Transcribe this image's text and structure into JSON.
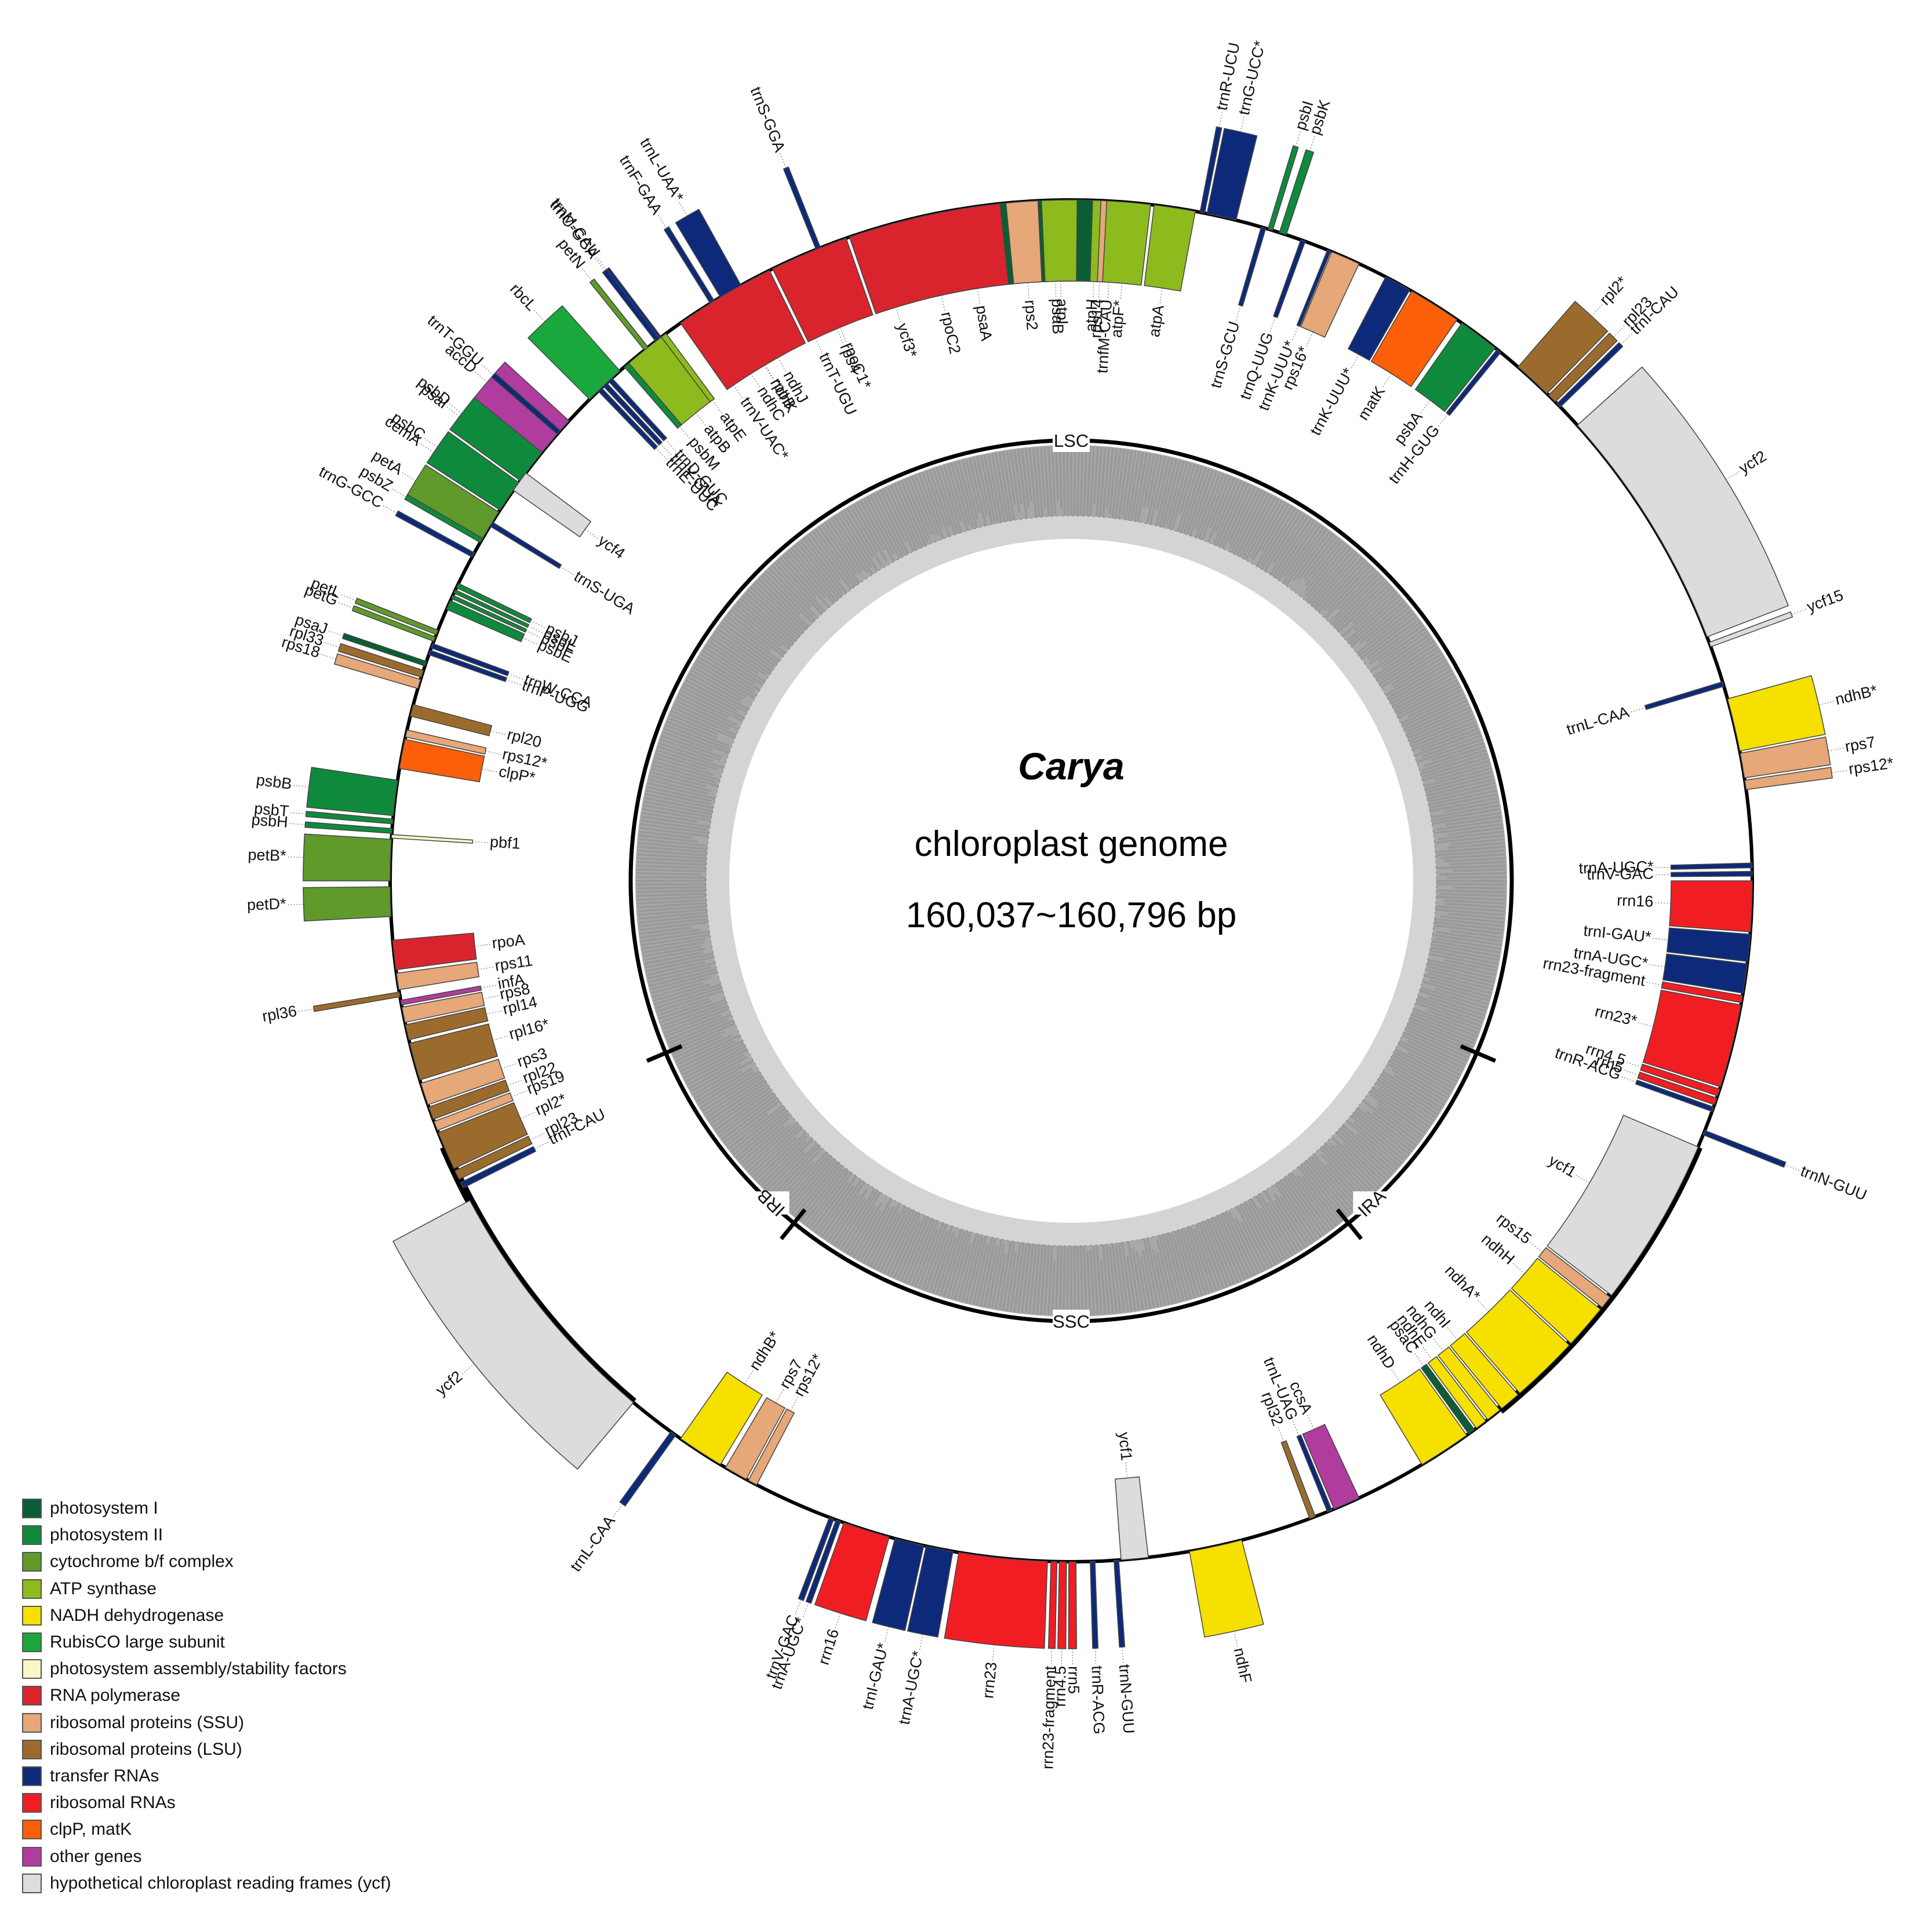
{
  "title": "Carya",
  "subtitle_line1": "chloroplast genome",
  "subtitle_line2": "160,037~160,796 bp",
  "regions": {
    "lsc": "LSC",
    "ssc": "SSC",
    "ira": "IRA",
    "irb": "IRB"
  },
  "colors": {
    "photosystem_i": "#0b5e34",
    "photosystem_ii": "#0f8a3c",
    "cytochrome": "#5f9a2a",
    "atp": "#8dbb1e",
    "ndh": "#f5e000",
    "rubisco": "#1aa83c",
    "assembly": "#fbf6c8",
    "rna_pol": "#d9242e",
    "ssu": "#e6a779",
    "lsu": "#9b6b2e",
    "trna": "#0d2a7a",
    "rrna": "#f01e23",
    "clpp_matk": "#fb5f0a",
    "other": "#b03c9e",
    "ycf": "#dcdcdc"
  },
  "legend": [
    {
      "label": "photosystem I",
      "color": "#0b5e34"
    },
    {
      "label": "photosystem II",
      "color": "#0f8a3c"
    },
    {
      "label": "cytochrome b/f complex",
      "color": "#5f9a2a"
    },
    {
      "label": "ATP synthase",
      "color": "#8dbb1e"
    },
    {
      "label": "NADH dehydrogenase",
      "color": "#f5e000"
    },
    {
      "label": "RubisCO large subunit",
      "color": "#1aa83c"
    },
    {
      "label": "photosystem assembly/stability factors",
      "color": "#fbf6c8"
    },
    {
      "label": "RNA polymerase",
      "color": "#d9242e"
    },
    {
      "label": "ribosomal proteins (SSU)",
      "color": "#e6a779"
    },
    {
      "label": "ribosomal proteins (LSU)",
      "color": "#9b6b2e"
    },
    {
      "label": "transfer RNAs",
      "color": "#0d2a7a"
    },
    {
      "label": "ribosomal RNAs",
      "color": "#f01e23"
    },
    {
      "label": "clpP, matK",
      "color": "#fb5f0a"
    },
    {
      "label": "other genes",
      "color": "#b03c9e"
    },
    {
      "label": "hypothetical chloroplast reading frames (ycf)",
      "color": "#dcdcdc"
    }
  ],
  "genes": [
    {
      "name": "psaA",
      "cat": "photosystem_i",
      "a1": -13,
      "a2": -5,
      "side": "in"
    },
    {
      "name": "psaB",
      "cat": "photosystem_i",
      "a1": -5,
      "a2": 2,
      "side": "in"
    },
    {
      "name": "rps14",
      "cat": "ssu",
      "a1": 2.2,
      "a2": 3.2,
      "side": "in"
    },
    {
      "name": "trnfM-CAU",
      "cat": "trna",
      "a1": 3.4,
      "a2": 3.8,
      "side": "in"
    },
    {
      "name": "ycf3*",
      "cat": "ycf",
      "a1": -19,
      "a2": -15,
      "side": "in"
    },
    {
      "name": "rps4",
      "cat": "ssu",
      "a1": -24,
      "a2": -22,
      "side": "in"
    },
    {
      "name": "trnT-UGU",
      "cat": "trna",
      "a1": -25.5,
      "a2": -25,
      "side": "in"
    },
    {
      "name": "trnS-GGA",
      "cat": "trna",
      "a1": -22,
      "a2": -21.6,
      "side": "out"
    },
    {
      "name": "trnL-UAA*",
      "cat": "trna",
      "a1": -31,
      "a2": -29,
      "side": "out"
    },
    {
      "name": "trnF-GAA",
      "cat": "trna",
      "a1": -32,
      "a2": -31.6,
      "side": "out"
    },
    {
      "name": "ndhJ",
      "cat": "ndh",
      "a1": -30,
      "a2": -28.5,
      "side": "in"
    },
    {
      "name": "ndhK",
      "cat": "ndh",
      "a1": -31.5,
      "a2": -30,
      "side": "in"
    },
    {
      "name": "ndhC",
      "cat": "ndh",
      "a1": -33,
      "a2": -31.5,
      "side": "in"
    },
    {
      "name": "trnV-UAC*",
      "cat": "trna",
      "a1": -35,
      "a2": -33.5,
      "side": "in"
    },
    {
      "name": "trnM-CAU",
      "cat": "trna",
      "a1": -37.5,
      "a2": -37,
      "side": "out"
    },
    {
      "name": "atpE",
      "cat": "atp",
      "a1": -37,
      "a2": -36.5,
      "side": "in"
    },
    {
      "name": "atpB",
      "cat": "atp",
      "a1": -40.5,
      "a2": -37,
      "side": "in"
    },
    {
      "name": "rbcL",
      "cat": "rubisco",
      "a1": -45,
      "a2": -41.5,
      "side": "out"
    },
    {
      "name": "accD",
      "cat": "other",
      "a1": -51.5,
      "a2": -47.5,
      "side": "out"
    },
    {
      "name": "psaI",
      "cat": "photosystem_i",
      "a1": -53,
      "a2": -52.6,
      "side": "out"
    },
    {
      "name": "ycf4",
      "cat": "ycf",
      "a1": -55,
      "a2": -53.2,
      "side": "in"
    },
    {
      "name": "cemA",
      "cat": "other",
      "a1": -57,
      "a2": -55.2,
      "side": "out"
    },
    {
      "name": "petA",
      "cat": "cytochrome",
      "a1": -60,
      "a2": -57.2,
      "side": "out"
    },
    {
      "name": "psbJ",
      "cat": "photosystem_ii",
      "a1": -64.5,
      "a2": -64.1,
      "side": "in"
    },
    {
      "name": "psbL",
      "cat": "photosystem_ii",
      "a1": -65,
      "a2": -64.7,
      "side": "in"
    },
    {
      "name": "psbF",
      "cat": "photosystem_ii",
      "a1": -65.5,
      "a2": -65.2,
      "side": "in"
    },
    {
      "name": "psbE",
      "cat": "photosystem_ii",
      "a1": -66.5,
      "a2": -65.7,
      "side": "in"
    },
    {
      "name": "petL",
      "cat": "cytochrome",
      "a1": -68.8,
      "a2": -68.4,
      "side": "out"
    },
    {
      "name": "petG",
      "cat": "cytochrome",
      "a1": -69.4,
      "a2": -69,
      "side": "out"
    },
    {
      "name": "trnW-CCA",
      "cat": "trna",
      "a1": -70,
      "a2": -69.6,
      "side": "in"
    },
    {
      "name": "trnP-UGG",
      "cat": "trna",
      "a1": -70.6,
      "a2": -70.2,
      "side": "in"
    },
    {
      "name": "psaJ",
      "cat": "photosystem_i",
      "a1": -71.6,
      "a2": -71.2,
      "side": "out"
    },
    {
      "name": "rpl33",
      "cat": "lsu",
      "a1": -72.6,
      "a2": -72,
      "side": "out"
    },
    {
      "name": "rps18",
      "cat": "ssu",
      "a1": -73.6,
      "a2": -72.8,
      "side": "out"
    },
    {
      "name": "rpl20",
      "cat": "lsu",
      "a1": -76,
      "a2": -75,
      "side": "in"
    },
    {
      "name": "rps12*",
      "cat": "ssu",
      "a1": -77.8,
      "a2": -77.2,
      "side": "in"
    },
    {
      "name": "clpP*",
      "cat": "clpp_matk",
      "a1": -80.5,
      "a2": -78,
      "side": "in"
    },
    {
      "name": "psbB",
      "cat": "photosystem_ii",
      "a1": -84.5,
      "a2": -81.5,
      "side": "out"
    },
    {
      "name": "psbT",
      "cat": "photosystem_ii",
      "a1": -85.2,
      "a2": -84.8,
      "side": "out"
    },
    {
      "name": "psbH",
      "cat": "photosystem_ii",
      "a1": -86,
      "a2": -85.6,
      "side": "out"
    },
    {
      "name": "pbf1",
      "cat": "assembly",
      "a1": -86.4,
      "a2": -86.1,
      "side": "in"
    },
    {
      "name": "petB*",
      "cat": "cytochrome",
      "a1": -90,
      "a2": -86.5,
      "side": "out"
    },
    {
      "name": "petD*",
      "cat": "cytochrome",
      "a1": -93,
      "a2": -90.5,
      "side": "out"
    },
    {
      "name": "rpoA",
      "cat": "rna_pol",
      "a1": -97.5,
      "a2": -95,
      "side": "in"
    },
    {
      "name": "rps11",
      "cat": "ssu",
      "a1": -99.2,
      "a2": -97.8,
      "side": "in"
    },
    {
      "name": "rpl36",
      "cat": "lsu",
      "a1": -99.8,
      "a2": -99.4,
      "side": "out"
    },
    {
      "name": "infA",
      "cat": "other",
      "a1": -100.5,
      "a2": -100.1,
      "side": "in"
    },
    {
      "name": "rps8",
      "cat": "ssu",
      "a1": -102,
      "a2": -100.7,
      "side": "in"
    },
    {
      "name": "rpl14",
      "cat": "lsu",
      "a1": -103.5,
      "a2": -102.2,
      "side": "in"
    },
    {
      "name": "rpl16*",
      "cat": "lsu",
      "a1": -107,
      "a2": -103.8,
      "side": "in"
    },
    {
      "name": "rps3",
      "cat": "ssu",
      "a1": -109.2,
      "a2": -107.3,
      "side": "in"
    },
    {
      "name": "rpl22",
      "cat": "lsu",
      "a1": -110.5,
      "a2": -109.4,
      "side": "in"
    },
    {
      "name": "rps19",
      "cat": "ssu",
      "a1": -111.5,
      "a2": -110.7,
      "side": "in"
    },
    {
      "name": "rpl2*",
      "cat": "lsu",
      "a1": -115,
      "a2": -111.7,
      "side": "in"
    },
    {
      "name": "rpl23",
      "cat": "lsu",
      "a1": -116,
      "a2": -115.2,
      "side": "in"
    },
    {
      "name": "trnI-CAU",
      "cat": "trna",
      "a1": -116.8,
      "a2": -116.3,
      "side": "in"
    },
    {
      "name": "ycf2",
      "cat": "ycf",
      "a1": -140,
      "a2": -118,
      "side": "out"
    },
    {
      "name": "trnL-CAA",
      "cat": "trna",
      "a1": -144.5,
      "a2": -144,
      "side": "out"
    },
    {
      "name": "ndhB*",
      "cat": "ndh",
      "a1": -149,
      "a2": -145,
      "side": "in"
    },
    {
      "name": "rps7",
      "cat": "ssu",
      "a1": -151.5,
      "a2": -149.5,
      "side": "in"
    },
    {
      "name": "rps12*",
      "cat": "ssu",
      "a1": -152.5,
      "a2": -151.7,
      "side": "in"
    },
    {
      "name": "trnV-GAC",
      "cat": "trna",
      "a1": -159.6,
      "a2": -159.2,
      "side": "out"
    },
    {
      "name": "trnA-UGC*",
      "cat": "trna",
      "a1": -160.2,
      "a2": -159.8,
      "side": "out"
    },
    {
      "name": "rrn16",
      "cat": "rrna",
      "a1": -164.5,
      "a2": -160.5,
      "side": "out"
    },
    {
      "name": "trnI-GAU*",
      "cat": "trna",
      "a1": -167.5,
      "a2": -165,
      "side": "out"
    },
    {
      "name": "trnA-UGC*",
      "cat": "trna",
      "a1": -170,
      "a2": -167.7,
      "side": "out"
    },
    {
      "name": "rrn23",
      "cat": "rrna",
      "a1": -178,
      "a2": -170.5,
      "side": "out"
    },
    {
      "name": "rrn23-fragment",
      "cat": "rrna",
      "a1": -178.8,
      "a2": -178.3,
      "side": "out"
    },
    {
      "name": "rrn4.5",
      "cat": "rrna",
      "a1": -179.6,
      "a2": -179,
      "side": "out"
    },
    {
      "name": "rrn5",
      "cat": "rrna",
      "a1": -180.4,
      "a2": -179.8,
      "side": "out"
    },
    {
      "name": "trnR-ACG",
      "cat": "trna",
      "a1": -182,
      "a2": -181.6,
      "side": "out"
    },
    {
      "name": "trnN-GUU",
      "cat": "trna",
      "a1": -184,
      "a2": -183.6,
      "side": "out"
    },
    {
      "name": "ycf1",
      "cat": "ycf",
      "a1": -186.5,
      "a2": -184.2,
      "side": "in"
    },
    {
      "name": "ndhF",
      "cat": "ndh",
      "a1": -194.5,
      "a2": -190,
      "side": "out"
    },
    {
      "name": "rpl32",
      "cat": "lsu",
      "a1": -201,
      "a2": -200.5,
      "side": "in"
    },
    {
      "name": "trnL-UAG",
      "cat": "trna",
      "a1": -202.5,
      "a2": -202.1,
      "side": "in"
    },
    {
      "name": "ccsA",
      "cat": "other",
      "a1": -205,
      "a2": -202.7,
      "side": "in"
    },
    {
      "name": "ndhD",
      "cat": "ndh",
      "a1": -215.5,
      "a2": -211,
      "side": "in"
    },
    {
      "name": "psaC",
      "cat": "photosystem_i",
      "a1": -216.3,
      "a2": -215.7,
      "side": "in"
    },
    {
      "name": "ndhE",
      "cat": "ndh",
      "a1": -217.5,
      "a2": -216.5,
      "side": "in"
    },
    {
      "name": "ndhG",
      "cat": "ndh",
      "a1": -219,
      "a2": -217.7,
      "side": "in"
    },
    {
      "name": "ndhI",
      "cat": "ndh",
      "a1": -221,
      "a2": -219.2,
      "side": "in"
    },
    {
      "name": "ndhA*",
      "cat": "ndh",
      "a1": -227,
      "a2": -221.2,
      "side": "in"
    },
    {
      "name": "ndhH",
      "cat": "ndh",
      "a1": -231,
      "a2": -227.2,
      "side": "in"
    },
    {
      "name": "rps15",
      "cat": "ssu",
      "a1": -232.3,
      "a2": -231.2,
      "side": "in"
    },
    {
      "name": "ycf1",
      "cat": "ycf",
      "a1": -247,
      "a2": -232.5,
      "side": "in"
    },
    {
      "name": "trnN-GUU",
      "cat": "trna",
      "a1": -248.5,
      "a2": -248.1,
      "side": "out"
    },
    {
      "name": "trnR-ACG",
      "cat": "trna",
      "a1": -250.6,
      "a2": -250.2,
      "side": "in"
    },
    {
      "name": "rrn5",
      "cat": "rrna",
      "a1": -251.4,
      "a2": -250.8,
      "side": "in"
    },
    {
      "name": "rrn4.5",
      "cat": "rrna",
      "a1": -252.2,
      "a2": -251.6,
      "side": "in"
    },
    {
      "name": "rrn23*",
      "cat": "rrna",
      "a1": -259.5,
      "a2": -252.4,
      "side": "in"
    },
    {
      "name": "rrn23-fragment",
      "cat": "rrna",
      "a1": -260.3,
      "a2": -259.7,
      "side": "in"
    },
    {
      "name": "trnA-UGC*",
      "cat": "trna",
      "a1": -263,
      "a2": -260.5,
      "side": "in"
    },
    {
      "name": "trnI-GAU*",
      "cat": "trna",
      "a1": -265.5,
      "a2": -263.2,
      "side": "in"
    },
    {
      "name": "rrn16",
      "cat": "rrna",
      "a1": -270,
      "a2": -265.7,
      "side": "in"
    },
    {
      "name": "trnV-GAC",
      "cat": "trna",
      "a1": -270.8,
      "a2": -270.4,
      "side": "in"
    },
    {
      "name": "trnA-UGC*",
      "cat": "trna",
      "a1": -271.5,
      "a2": -271.1,
      "side": "in"
    },
    {
      "name": "rps12*",
      "cat": "ssu",
      "a1": -278.5,
      "a2": -277.7,
      "side": "out"
    },
    {
      "name": "rps7",
      "cat": "ssu",
      "a1": -280.8,
      "a2": -278.7,
      "side": "out"
    },
    {
      "name": "ndhB*",
      "cat": "ndh",
      "a1": -285.5,
      "a2": -281,
      "side": "out"
    },
    {
      "name": "trnL-CAA",
      "cat": "trna",
      "a1": -287,
      "a2": -286.6,
      "side": "in"
    },
    {
      "name": "ycf15",
      "cat": "ycf",
      "a1": -290.5,
      "a2": -290.1,
      "side": "out"
    },
    {
      "name": "ycf2",
      "cat": "ycf",
      "a1": -312,
      "a2": -291,
      "side": "out"
    },
    {
      "name": "trnI-CAU",
      "cat": "trna",
      "a1": -314.5,
      "a2": -314.1,
      "side": "out"
    },
    {
      "name": "rpl23",
      "cat": "lsu",
      "a1": -315.5,
      "a2": -314.7,
      "side": "out"
    },
    {
      "name": "rpl2*",
      "cat": "lsu",
      "a1": -319,
      "a2": -315.7,
      "side": "out"
    },
    {
      "name": "trnH-GUG",
      "cat": "trna",
      "a1": -321.3,
      "a2": -320.9,
      "side": "in"
    },
    {
      "name": "psbA",
      "cat": "photosystem_ii",
      "a1": -325,
      "a2": -321.5,
      "side": "in"
    },
    {
      "name": "matK",
      "cat": "clpp_matk",
      "a1": -330,
      "a2": -325.5,
      "side": "in"
    },
    {
      "name": "trnK-UUU*",
      "cat": "trna",
      "a1": -332.5,
      "a2": -330.2,
      "side": "in"
    },
    {
      "name": "rps16*",
      "cat": "ssu",
      "a1": -337.5,
      "a2": -335,
      "side": "in"
    },
    {
      "name": "trnK-UUU*",
      "cat": "trna",
      "a1": -337.9,
      "a2": -337.6,
      "side": "in"
    },
    {
      "name": "trnQ-UUG",
      "cat": "trna",
      "a1": -340.3,
      "a2": -339.9,
      "side": "in"
    },
    {
      "name": "psbK",
      "cat": "photosystem_ii",
      "a1": -342.2,
      "a2": -341.6,
      "side": "out"
    },
    {
      "name": "psbI",
      "cat": "photosystem_ii",
      "a1": -343.2,
      "a2": -342.8,
      "side": "out"
    },
    {
      "name": "trnS-GCU",
      "cat": "trna",
      "a1": -343.8,
      "a2": -343.4,
      "side": "in"
    },
    {
      "name": "trnG-UCC*",
      "cat": "trna",
      "a1": -348.5,
      "a2": -346,
      "side": "out"
    },
    {
      "name": "trnR-UCU",
      "cat": "trna",
      "a1": -349.1,
      "a2": -348.7,
      "side": "out"
    },
    {
      "name": "atpA",
      "cat": "atp",
      "a1": -353,
      "a2": -349.5,
      "side": "in"
    },
    {
      "name": "atpF*",
      "cat": "atp",
      "a1": -357,
      "a2": -353.3,
      "side": "in"
    },
    {
      "name": "atpH",
      "cat": "atp",
      "a1": -358.2,
      "a2": -357.5,
      "side": "in"
    },
    {
      "name": "atpI",
      "cat": "atp",
      "a1": -362.5,
      "a2": -359.5,
      "side": "in"
    },
    {
      "name": "rps2",
      "cat": "ssu",
      "a1": -365.5,
      "a2": -362.8,
      "side": "in"
    },
    {
      "name": "rpoC2",
      "cat": "rna_pol",
      "a1": -379,
      "a2": -366,
      "side": "in"
    },
    {
      "name": "rpoC1*",
      "cat": "rna_pol",
      "a1": -386,
      "a2": -379.3,
      "side": "in"
    },
    {
      "name": "rpoB",
      "cat": "rna_pol",
      "a1": -395,
      "a2": -386.3,
      "side": "in"
    },
    {
      "name": "trnC-GCA",
      "cat": "trna",
      "a1": -397.6,
      "a2": -397.2,
      "side": "out"
    },
    {
      "name": "petN",
      "cat": "cytochrome",
      "a1": -398.8,
      "a2": -398.4,
      "side": "out"
    },
    {
      "name": "psbM",
      "cat": "photosystem_ii",
      "a1": -401,
      "a2": -400.5,
      "side": "in"
    },
    {
      "name": "trnD-GUC",
      "cat": "trna",
      "a1": -402.8,
      "a2": -402.4,
      "side": "in"
    },
    {
      "name": "trnY-GUA",
      "cat": "trna",
      "a1": -403.4,
      "a2": -403,
      "side": "in"
    },
    {
      "name": "trnE-UUC",
      "cat": "trna",
      "a1": -404,
      "a2": -403.6,
      "side": "in"
    },
    {
      "name": "trnT-GGU",
      "cat": "trna",
      "a1": -409,
      "a2": -408.6,
      "side": "out"
    },
    {
      "name": "psbD",
      "cat": "photosystem_ii",
      "a1": -414,
      "a2": -411,
      "side": "out"
    },
    {
      "name": "psbC",
      "cat": "photosystem_ii",
      "a1": -417,
      "a2": -414.2,
      "side": "out"
    },
    {
      "name": "trnS-UGA",
      "cat": "trna",
      "a1": -418.6,
      "a2": -418.2,
      "side": "in"
    },
    {
      "name": "psbZ",
      "cat": "photosystem_ii",
      "a1": -420.2,
      "a2": -419.8,
      "side": "out"
    },
    {
      "name": "trnG-GCC",
      "cat": "trna",
      "a1": -421.6,
      "a2": -421.2,
      "side": "out"
    }
  ]
}
